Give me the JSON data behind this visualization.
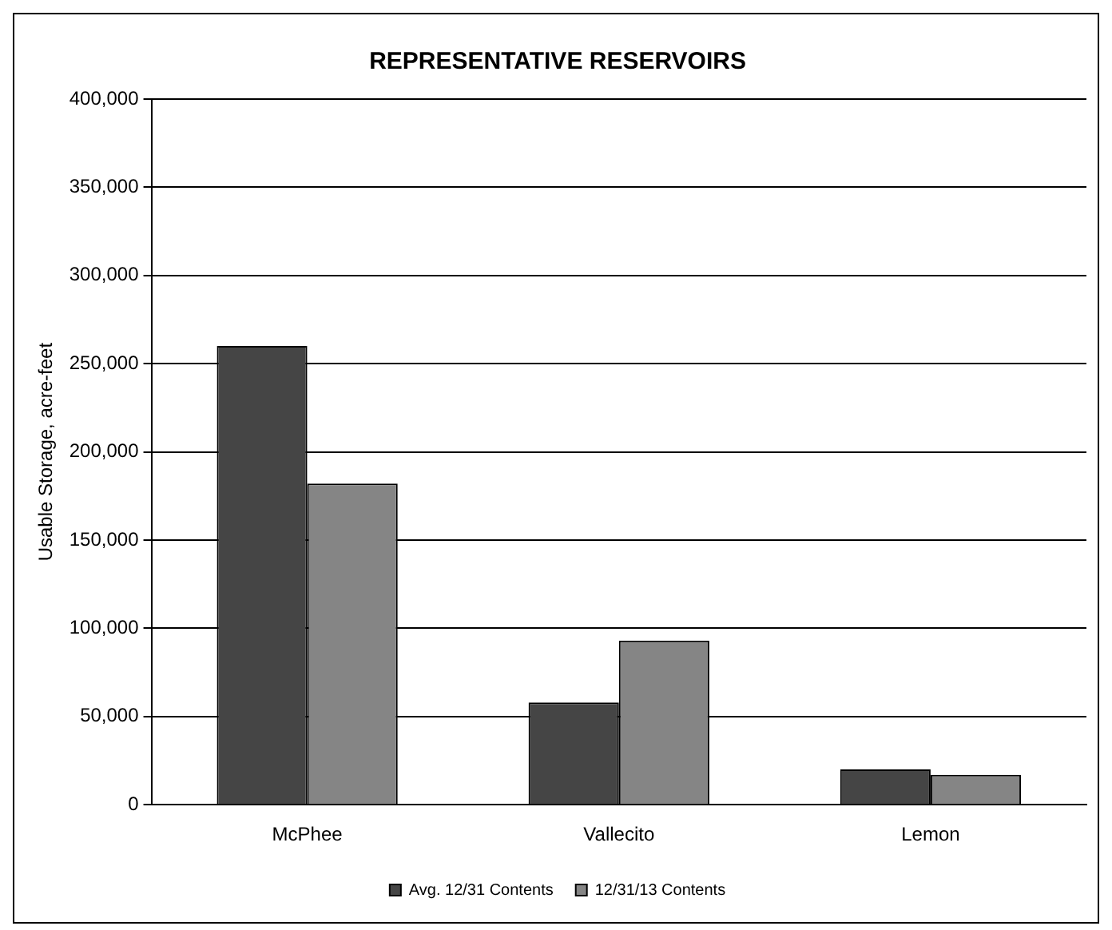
{
  "chart_data": {
    "type": "bar",
    "title": "REPRESENTATIVE RESERVOIRS",
    "ylabel": "Usable Storage, acre-feet",
    "categories": [
      "McPhee",
      "Vallecito",
      "Lemon"
    ],
    "series": [
      {
        "name": "Avg. 12/31 Contents",
        "color": "#454545",
        "values": [
          260000,
          58000,
          20000
        ]
      },
      {
        "name": "12/31/13 Contents",
        "color": "#858585",
        "values": [
          182000,
          93000,
          17000
        ]
      }
    ],
    "ylim": [
      0,
      400000
    ],
    "yticks": [
      0,
      {
        "value": 50000,
        "label": "50,000"
      },
      {
        "value": 100000,
        "label": "100,000"
      },
      {
        "value": 150000,
        "label": "150,000"
      },
      {
        "value": 200000,
        "label": "200,000"
      },
      {
        "value": 250000,
        "label": "250,000"
      },
      {
        "value": 300000,
        "label": "300,000"
      },
      {
        "value": 350000,
        "label": "350,000"
      },
      {
        "value": 400000,
        "label": "400,000"
      }
    ],
    "grid": "y",
    "legend": "bottom"
  }
}
